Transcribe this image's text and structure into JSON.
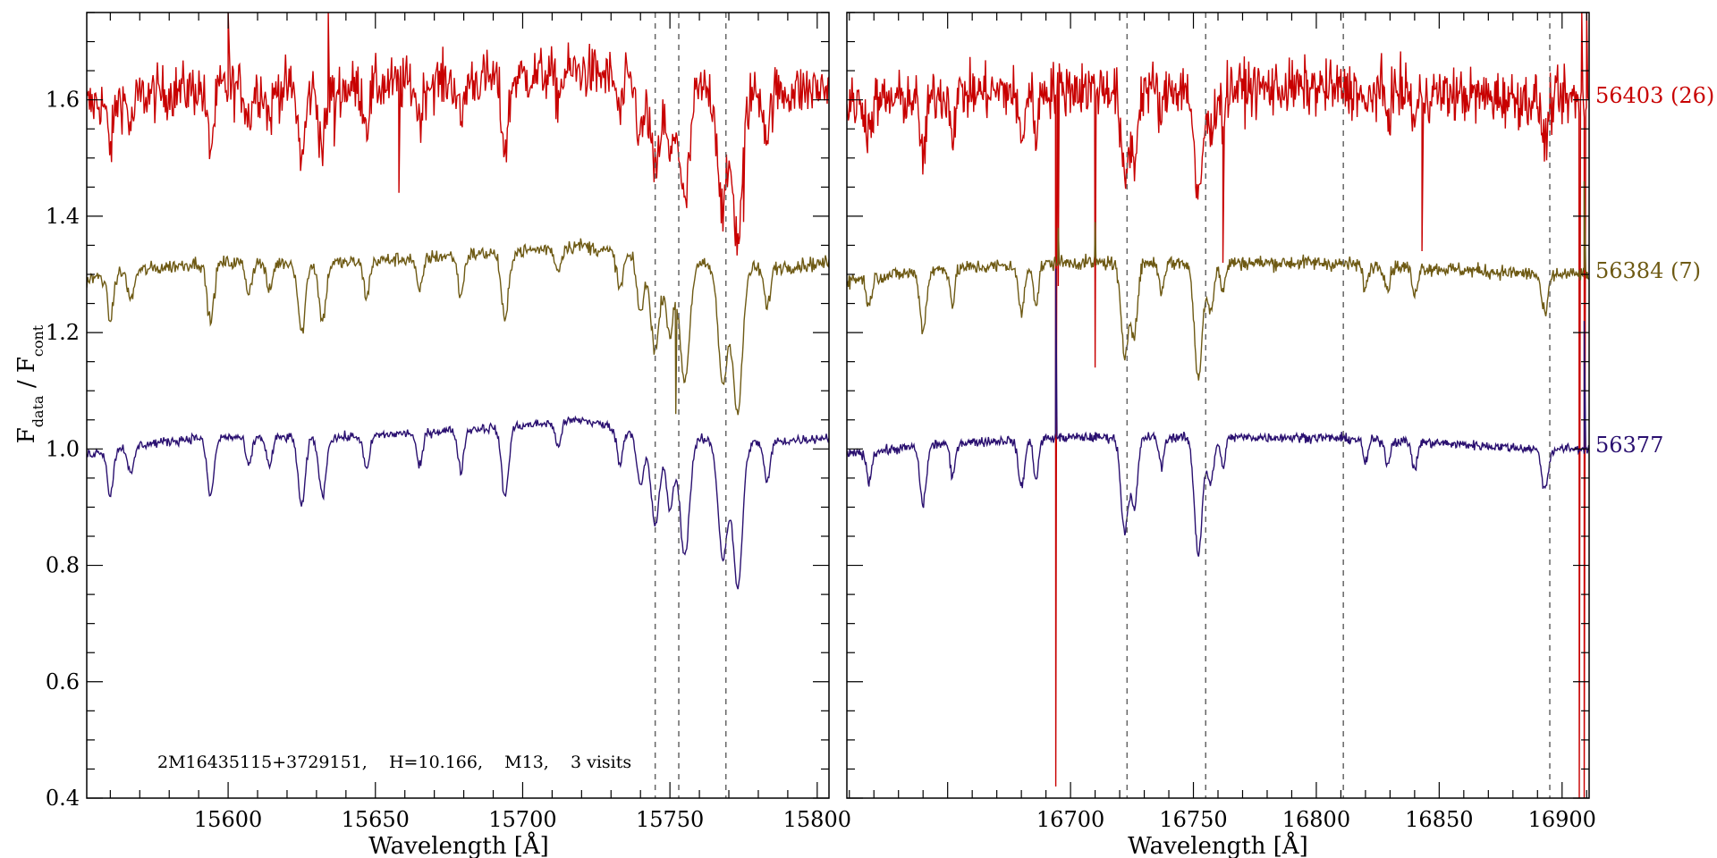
{
  "chart_data": {
    "type": "line",
    "ylabel": {
      "main": "F",
      "sub1": "data",
      "mid": " / F",
      "sub2": "cont"
    },
    "ylim": [
      0.4,
      1.75
    ],
    "yticks": [
      0.4,
      0.6,
      0.8,
      1.0,
      1.2,
      1.4,
      1.6
    ],
    "ytick_labels": [
      "0.4",
      "0.6",
      "0.8",
      "1.0",
      "1.2",
      "1.4",
      "1.6"
    ],
    "grid": false,
    "annotation": "2M16435115+3729151,    H=10.166,    M13,    3 visits",
    "panels": [
      {
        "xlabel": "Wavelength [Å]",
        "xlim": [
          15552,
          15804
        ],
        "xticks": [
          15600,
          15650,
          15700,
          15750,
          15800
        ],
        "xtick_labels": [
          "15600",
          "15650",
          "15700",
          "15750",
          "15800"
        ],
        "dashed_lines": [
          15745,
          15753,
          15769
        ]
      },
      {
        "xlabel": "Wavelength [Å]",
        "xlim": [
          16609,
          16911
        ],
        "xticks": [
          16700,
          16750,
          16800,
          16850,
          16900
        ],
        "xtick_labels": [
          "16700",
          "16750",
          "16800",
          "16850",
          "16900"
        ],
        "dashed_lines": [
          16723,
          16755,
          16811,
          16895
        ]
      }
    ],
    "series": [
      {
        "name": "56403 (26)",
        "color": "#c80000",
        "offset": 0.6,
        "noise": 0.045,
        "spike_points": [
          [
            15600,
            1.75
          ],
          [
            15634,
            1.75
          ],
          [
            15636,
            1.52
          ],
          [
            15658,
            1.75
          ],
          [
            15658,
            1.44
          ],
          [
            15775,
            1.39
          ],
          [
            16694,
            1.75
          ],
          [
            16694,
            0.42
          ],
          [
            16695,
            1.28
          ],
          [
            16710,
            1.75
          ],
          [
            16710,
            1.14
          ],
          [
            16762,
            1.32
          ],
          [
            16843,
            1.75
          ],
          [
            16843,
            1.34
          ],
          [
            16907,
            0.4
          ],
          [
            16908,
            1.75
          ],
          [
            16909,
            0.4
          ],
          [
            16910,
            1.75
          ]
        ]
      },
      {
        "name": "56384 (7)",
        "color": "#6e5a14",
        "offset": 0.3,
        "noise": 0.012,
        "spike_points": [
          [
            15752,
            1.06
          ],
          [
            16695,
            1.38
          ],
          [
            16710,
            1.39
          ],
          [
            16909,
            1.46
          ]
        ]
      },
      {
        "name": "56377",
        "color": "#2a1070",
        "offset": 0.0,
        "noise": 0.008,
        "spike_points": [
          [
            16694,
            1.31
          ],
          [
            16909,
            1.22
          ]
        ]
      }
    ],
    "continuum": {
      "panel1": [
        [
          15552,
          0.99
        ],
        [
          15560,
          1.0
        ],
        [
          15590,
          1.02
        ],
        [
          15640,
          1.02
        ],
        [
          15700,
          1.04
        ],
        [
          15720,
          1.05
        ],
        [
          15745,
          1.02
        ],
        [
          15780,
          1.01
        ],
        [
          15804,
          1.02
        ]
      ],
      "panel2": [
        [
          16609,
          0.99
        ],
        [
          16650,
          1.01
        ],
        [
          16700,
          1.02
        ],
        [
          16770,
          1.02
        ],
        [
          16800,
          1.02
        ],
        [
          16850,
          1.01
        ],
        [
          16890,
          1.0
        ],
        [
          16911,
          1.0
        ]
      ]
    },
    "absorption_lines": [
      {
        "center": 15560,
        "depth": 0.08,
        "width": 1.0
      },
      {
        "center": 15567,
        "depth": 0.05,
        "width": 1.0
      },
      {
        "center": 15594,
        "depth": 0.1,
        "width": 1.2
      },
      {
        "center": 15607,
        "depth": 0.05,
        "width": 1.0
      },
      {
        "center": 15614,
        "depth": 0.05,
        "width": 1.0
      },
      {
        "center": 15625,
        "depth": 0.12,
        "width": 1.2
      },
      {
        "center": 15632,
        "depth": 0.1,
        "width": 1.2
      },
      {
        "center": 15647,
        "depth": 0.06,
        "width": 1.0
      },
      {
        "center": 15665,
        "depth": 0.06,
        "width": 1.0
      },
      {
        "center": 15679,
        "depth": 0.07,
        "width": 1.0
      },
      {
        "center": 15694,
        "depth": 0.12,
        "width": 1.2
      },
      {
        "center": 15712,
        "depth": 0.04,
        "width": 1.0
      },
      {
        "center": 15733,
        "depth": 0.06,
        "width": 1.0
      },
      {
        "center": 15740,
        "depth": 0.09,
        "width": 1.2
      },
      {
        "center": 15745,
        "depth": 0.15,
        "width": 1.5
      },
      {
        "center": 15750,
        "depth": 0.12,
        "width": 1.3
      },
      {
        "center": 15755,
        "depth": 0.2,
        "width": 1.6
      },
      {
        "center": 15768,
        "depth": 0.2,
        "width": 1.6
      },
      {
        "center": 15773,
        "depth": 0.25,
        "width": 1.6
      },
      {
        "center": 15783,
        "depth": 0.07,
        "width": 1.0
      },
      {
        "center": 16618,
        "depth": 0.05,
        "width": 1.0
      },
      {
        "center": 16640,
        "depth": 0.1,
        "width": 1.3
      },
      {
        "center": 16652,
        "depth": 0.06,
        "width": 1.0
      },
      {
        "center": 16680,
        "depth": 0.08,
        "width": 1.3
      },
      {
        "center": 16686,
        "depth": 0.07,
        "width": 1.0
      },
      {
        "center": 16722,
        "depth": 0.16,
        "width": 1.5
      },
      {
        "center": 16726,
        "depth": 0.12,
        "width": 1.3
      },
      {
        "center": 16737,
        "depth": 0.05,
        "width": 1.0
      },
      {
        "center": 16752,
        "depth": 0.2,
        "width": 1.6
      },
      {
        "center": 16757,
        "depth": 0.08,
        "width": 1.3
      },
      {
        "center": 16762,
        "depth": 0.05,
        "width": 1.0
      },
      {
        "center": 16820,
        "depth": 0.04,
        "width": 1.0
      },
      {
        "center": 16829,
        "depth": 0.04,
        "width": 1.0
      },
      {
        "center": 16840,
        "depth": 0.05,
        "width": 1.0
      },
      {
        "center": 16893,
        "depth": 0.07,
        "width": 1.3
      }
    ]
  }
}
